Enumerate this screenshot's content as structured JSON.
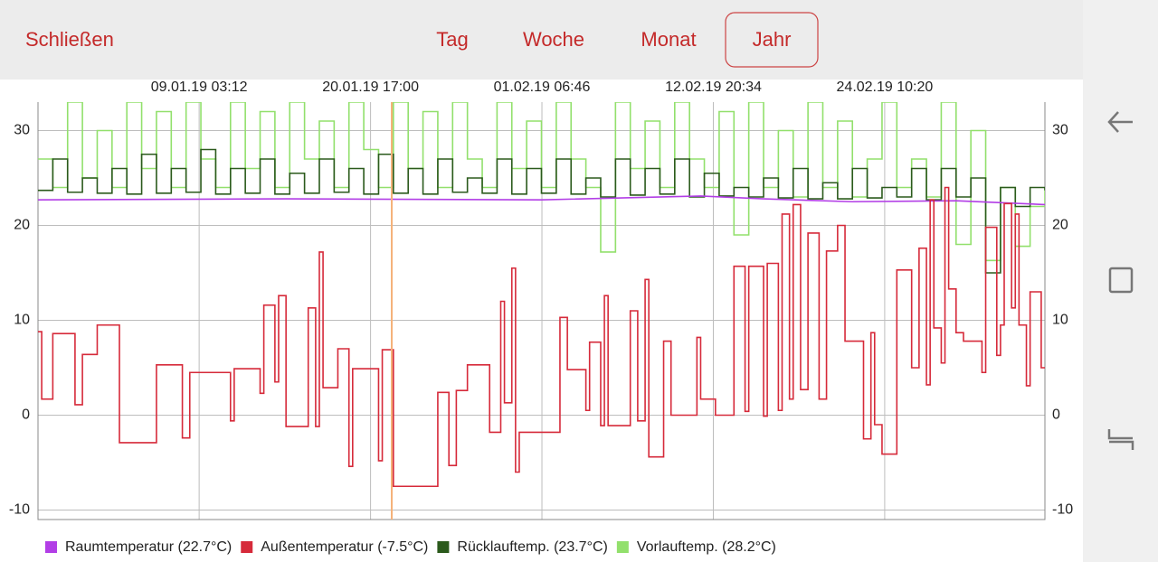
{
  "header": {
    "close": "Schließen",
    "tabs": [
      "Tag",
      "Woche",
      "Monat",
      "Jahr"
    ],
    "selected_tab": 3
  },
  "chart_data": {
    "type": "line",
    "xlim": [
      "2018-12-29T06:00",
      "2019-03-07T06:00"
    ],
    "xticks": [
      {
        "value": "2019-01-09T03:12",
        "label": "09.01.19 03:12"
      },
      {
        "value": "2019-01-20T17:00",
        "label": "20.01.19 17:00"
      },
      {
        "value": "2019-02-01T06:46",
        "label": "01.02.19 06:46"
      },
      {
        "value": "2019-02-12T20:34",
        "label": "12.02.19 20:34"
      },
      {
        "value": "2019-02-24T10:20",
        "label": "24.02.19 10:20"
      }
    ],
    "ylim": [
      -11,
      33
    ],
    "yticks": [
      -10,
      0,
      10,
      20,
      30
    ],
    "grid": true,
    "x": [
      "2018-12-29T06:00",
      "2018-12-30T06:00",
      "2018-12-31T06:00",
      "2019-01-01T06:00",
      "2019-01-02T06:00",
      "2019-01-03T06:00",
      "2019-01-04T06:00",
      "2019-01-05T06:00",
      "2019-01-06T06:00",
      "2019-01-07T06:00",
      "2019-01-08T06:00",
      "2019-01-09T06:00",
      "2019-01-10T06:00",
      "2019-01-11T06:00",
      "2019-01-12T06:00",
      "2019-01-13T06:00",
      "2019-01-14T06:00",
      "2019-01-15T06:00",
      "2019-01-16T06:00",
      "2019-01-17T06:00",
      "2019-01-18T06:00",
      "2019-01-19T06:00",
      "2019-01-20T06:00",
      "2019-01-21T06:00",
      "2019-01-22T06:00",
      "2019-01-23T06:00",
      "2019-01-24T06:00",
      "2019-01-25T06:00",
      "2019-01-26T06:00",
      "2019-01-27T06:00",
      "2019-01-28T06:00",
      "2019-01-29T06:00",
      "2019-01-30T06:00",
      "2019-01-31T06:00",
      "2019-02-01T06:00",
      "2019-02-02T06:00",
      "2019-02-03T06:00",
      "2019-02-04T06:00",
      "2019-02-05T06:00",
      "2019-02-06T06:00",
      "2019-02-07T06:00",
      "2019-02-08T06:00",
      "2019-02-09T06:00",
      "2019-02-10T06:00",
      "2019-02-11T06:00",
      "2019-02-12T06:00",
      "2019-02-13T06:00",
      "2019-02-14T06:00",
      "2019-02-15T06:00",
      "2019-02-16T06:00",
      "2019-02-17T06:00",
      "2019-02-18T06:00",
      "2019-02-19T06:00",
      "2019-02-20T06:00",
      "2019-02-21T06:00",
      "2019-02-22T06:00",
      "2019-02-23T06:00",
      "2019-02-24T06:00",
      "2019-02-25T06:00",
      "2019-02-26T06:00",
      "2019-02-27T06:00",
      "2019-02-28T06:00",
      "2019-03-01T06:00",
      "2019-03-02T06:00",
      "2019-03-03T06:00",
      "2019-03-04T06:00",
      "2019-03-05T06:00",
      "2019-03-06T06:00",
      "2019-03-07T06:00"
    ],
    "series": [
      {
        "name": "Raumtemperatur (22.7°C)",
        "color": "#b23ee6",
        "step": false,
        "x": [
          "2018-12-29T06:00",
          "2019-01-15T00:00",
          "2019-02-01T06:00",
          "2019-02-12T00:00",
          "2019-02-16T06:00",
          "2019-02-22T06:00",
          "2019-03-01T06:00",
          "2019-03-07T06:00"
        ],
        "values": [
          22.7,
          22.8,
          22.7,
          23.1,
          22.8,
          22.5,
          22.6,
          22.2
        ]
      },
      {
        "name": "Außentemperatur (-7.5°C)",
        "color": "#d62a3a",
        "step": true,
        "x": [
          "2018-12-29T06:00",
          "2018-12-29T12:00",
          "2018-12-30T06:00",
          "2018-12-31T18:00",
          "2019-01-01T06:00",
          "2019-01-02T06:00",
          "2019-01-03T18:00",
          "2019-01-06T06:00",
          "2019-01-08T00:00",
          "2019-01-08T12:00",
          "2019-01-11T06:00",
          "2019-01-11T12:00",
          "2019-01-13T06:00",
          "2019-01-13T12:00",
          "2019-01-14T06:00",
          "2019-01-14T12:00",
          "2019-01-15T00:00",
          "2019-01-16T12:00",
          "2019-01-17T00:00",
          "2019-01-17T06:00",
          "2019-01-17T12:00",
          "2019-01-18T12:00",
          "2019-01-19T06:00",
          "2019-01-19T12:00",
          "2019-01-21T06:00",
          "2019-01-21T12:00",
          "2019-01-22T06:00",
          "2019-01-25T06:00",
          "2019-01-26T00:00",
          "2019-01-26T12:00",
          "2019-01-27T06:00",
          "2019-01-28T18:00",
          "2019-01-29T12:00",
          "2019-01-29T18:00",
          "2019-01-30T06:00",
          "2019-01-30T12:00",
          "2019-01-30T18:00",
          "2019-02-02T12:00",
          "2019-02-03T00:00",
          "2019-02-04T06:00",
          "2019-02-04T12:00",
          "2019-02-05T06:00",
          "2019-02-05T12:00",
          "2019-02-05T18:00",
          "2019-02-07T06:00",
          "2019-02-07T18:00",
          "2019-02-08T06:00",
          "2019-02-08T12:00",
          "2019-02-09T12:00",
          "2019-02-10T00:00",
          "2019-02-11T18:00",
          "2019-02-12T00:00",
          "2019-02-13T00:00",
          "2019-02-14T06:00",
          "2019-02-15T00:00",
          "2019-02-15T06:00",
          "2019-02-16T06:00",
          "2019-02-16T12:00",
          "2019-02-17T06:00",
          "2019-02-17T12:00",
          "2019-02-18T00:00",
          "2019-02-18T06:00",
          "2019-02-18T18:00",
          "2019-02-19T06:00",
          "2019-02-20T00:00",
          "2019-02-20T12:00",
          "2019-02-21T06:00",
          "2019-02-21T18:00",
          "2019-02-23T00:00",
          "2019-02-23T12:00",
          "2019-02-23T18:00",
          "2019-02-24T06:00",
          "2019-02-25T06:00",
          "2019-02-26T06:00",
          "2019-02-26T18:00",
          "2019-02-27T06:00",
          "2019-02-27T12:00",
          "2019-02-27T18:00",
          "2019-02-28T06:00",
          "2019-02-28T12:00",
          "2019-02-28T18:00",
          "2019-03-01T06:00",
          "2019-03-01T18:00",
          "2019-03-03T00:00",
          "2019-03-03T06:00",
          "2019-03-04T00:00",
          "2019-03-04T06:00",
          "2019-03-04T12:00",
          "2019-03-05T00:00",
          "2019-03-05T06:00",
          "2019-03-05T12:00",
          "2019-03-06T00:00",
          "2019-03-06T06:00",
          "2019-03-07T00:00"
        ],
        "values": [
          8.8,
          1.7,
          8.6,
          1.1,
          6.4,
          9.5,
          -2.9,
          5.3,
          -2.4,
          4.5,
          -0.6,
          4.9,
          2.3,
          11.6,
          3.5,
          12.6,
          -1.2,
          11.3,
          -1.2,
          17.2,
          2.9,
          7,
          -5.4,
          4.9,
          -4.8,
          6.9,
          -7.5,
          2.4,
          -5.3,
          2.6,
          5.3,
          -1.8,
          12,
          1.3,
          15.5,
          -6,
          -1.8,
          10.3,
          4.8,
          0.5,
          7.7,
          -1.1,
          12.6,
          -1.1,
          11,
          -0.6,
          14.3,
          -4.4,
          7.8,
          0,
          8.2,
          1.7,
          0,
          15.7,
          0.4,
          15.7,
          -0.1,
          16,
          0.5,
          21.2,
          1.7,
          22.2,
          2.7,
          19.2,
          1.7,
          17.3,
          20,
          7.8,
          -2.5,
          8.7,
          -1,
          -4.1,
          15.3,
          5,
          17.6,
          3.2,
          22.7,
          9.2,
          5.5,
          24,
          13.3,
          8.7,
          7.8,
          4.5,
          19.8,
          6.3,
          9.5,
          22.3,
          11.3,
          21.2,
          9.5,
          3.1,
          13,
          5
        ]
      },
      {
        "name": "Rücklauftemp. (23.7°C)",
        "color": "#2b5a1c",
        "step": true,
        "values": [
          23.7,
          27,
          23.5,
          25,
          23.4,
          26,
          23.3,
          27.5,
          23.4,
          26,
          23.5,
          28,
          23.3,
          26,
          23.4,
          27,
          23.3,
          25.5,
          23.4,
          27,
          23.5,
          26,
          23.3,
          27.5,
          23.4,
          26,
          23.3,
          27,
          23.5,
          25,
          23.4,
          27,
          23.3,
          26,
          23.4,
          27,
          23.3,
          25,
          23,
          27,
          23.2,
          26,
          23.3,
          27,
          23,
          25.5,
          23.1,
          24,
          23,
          25,
          22.9,
          26,
          22.8,
          24.5,
          22.8,
          26,
          22.9,
          24,
          23,
          26,
          22.7,
          26,
          23,
          25,
          15,
          24,
          22,
          24,
          23.7
        ]
      },
      {
        "name": "Vorlauftemp. (28.2°C)",
        "color": "#92e06c",
        "step": true,
        "values": [
          27,
          24,
          33,
          25,
          30,
          24,
          33,
          26,
          32,
          24,
          33,
          27,
          24,
          33,
          26,
          32,
          24,
          33,
          27,
          31,
          24,
          33,
          28,
          24,
          33,
          26,
          32,
          24,
          33,
          27,
          24,
          33,
          26,
          31,
          24,
          33,
          27,
          24,
          17.2,
          33,
          26,
          31,
          24,
          33,
          27,
          24,
          32,
          19,
          33,
          24,
          30,
          23,
          33,
          24,
          31,
          23,
          27,
          33,
          24,
          27,
          23,
          33,
          18,
          30,
          16.3,
          24,
          17.8,
          22,
          24
        ]
      }
    ]
  }
}
